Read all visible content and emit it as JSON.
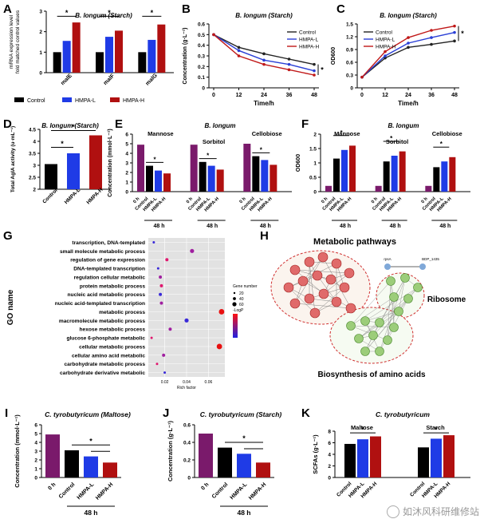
{
  "colors": {
    "control": "#000000",
    "l": "#1f3be6",
    "h": "#b01010",
    "zero": "#7a1a6b",
    "lineC": "#222222",
    "lineL": "#2a3fd6",
    "lineH": "#c01818",
    "gray": "#e2e2e2",
    "ovalRed": "#d03030",
    "ovalGreen": "#62b049"
  },
  "chart_data": [
    {
      "panel": "A",
      "type": "bar",
      "title": "B. longum (Starch)",
      "ylabel": "mRNA expression level\nfold matched control values",
      "ylim": [
        0,
        3
      ],
      "yticks": [
        0,
        1,
        2,
        3
      ],
      "categories": [
        "malE",
        "malF",
        "malG"
      ],
      "series": [
        {
          "name": "Control",
          "values": [
            1.0,
            1.0,
            1.0
          ]
        },
        {
          "name": "HMPA-L",
          "values": [
            1.55,
            1.75,
            1.6
          ]
        },
        {
          "name": "HMPA-H",
          "values": [
            2.45,
            2.05,
            2.35
          ]
        }
      ],
      "legend": [
        "Control",
        "HMPA-L",
        "HMPA-H"
      ],
      "sig": "*"
    },
    {
      "panel": "B",
      "type": "line",
      "title": "B. longum (Starch)",
      "xlabel": "Time/h",
      "ylabel": "Concentration (g·L⁻¹)",
      "x": [
        0,
        12,
        24,
        36,
        48
      ],
      "ylim": [
        0,
        0.6
      ],
      "yticks": [
        0.0,
        0.1,
        0.2,
        0.3,
        0.4,
        0.5,
        0.6
      ],
      "series": [
        {
          "name": "Control",
          "values": [
            0.5,
            0.38,
            0.32,
            0.27,
            0.22
          ]
        },
        {
          "name": "HMPA-L",
          "values": [
            0.5,
            0.35,
            0.26,
            0.22,
            0.16
          ]
        },
        {
          "name": "HMPA-H",
          "values": [
            0.5,
            0.3,
            0.22,
            0.17,
            0.12
          ]
        }
      ],
      "sig": "*"
    },
    {
      "panel": "C",
      "type": "line",
      "title": "B. longum (Starch)",
      "xlabel": "Time/h",
      "ylabel": "OD600",
      "x": [
        0,
        12,
        24,
        36,
        48
      ],
      "ylim": [
        0,
        1.5
      ],
      "yticks": [
        0.0,
        0.3,
        0.6,
        0.9,
        1.2,
        1.5
      ],
      "series": [
        {
          "name": "Control",
          "values": [
            0.25,
            0.7,
            0.95,
            1.02,
            1.1
          ]
        },
        {
          "name": "HMPA-L",
          "values": [
            0.25,
            0.75,
            1.05,
            1.18,
            1.3
          ]
        },
        {
          "name": "HMPA-H",
          "values": [
            0.25,
            0.85,
            1.18,
            1.35,
            1.45
          ]
        }
      ],
      "sig": "*"
    },
    {
      "panel": "D",
      "type": "bar",
      "title": "B. longum (Starch)",
      "ylabel": "Total AgIA activity (u·mL⁻¹)",
      "ylim": [
        2.0,
        4.5
      ],
      "yticks": [
        2.0,
        2.5,
        3.0,
        3.5,
        4.0,
        4.5
      ],
      "categories": [
        "Control",
        "HMPA-L",
        "HMPA-H"
      ],
      "values": [
        3.05,
        3.5,
        4.25
      ],
      "sig": "*"
    },
    {
      "panel": "E",
      "type": "bar",
      "title": "B. longum",
      "ylabel": "Concentration (mmol·L⁻¹)",
      "ylim": [
        0,
        6
      ],
      "yticks": [
        0,
        1,
        2,
        3,
        4,
        5,
        6
      ],
      "groups": [
        {
          "name": "Mannose",
          "values": [
            4.9,
            2.7,
            2.2,
            1.9
          ]
        },
        {
          "name": "Sorbitol",
          "values": [
            4.9,
            3.1,
            2.7,
            2.3
          ]
        },
        {
          "name": "Cellobiose",
          "values": [
            5.0,
            3.7,
            3.3,
            2.8
          ]
        }
      ],
      "categories": [
        "0 h",
        "Control",
        "HMPA-L",
        "HMPA-H"
      ],
      "xlabel": "48 h",
      "sig": "*"
    },
    {
      "panel": "F",
      "type": "bar",
      "title": "B. longum",
      "ylabel": "OD600",
      "ylim": [
        0,
        2.0
      ],
      "yticks": [
        0.0,
        0.5,
        1.0,
        1.5,
        2.0
      ],
      "groups": [
        {
          "name": "Mannose",
          "values": [
            0.2,
            1.15,
            1.45,
            1.6
          ]
        },
        {
          "name": "Sorbitol",
          "values": [
            0.2,
            1.05,
            1.25,
            1.4
          ]
        },
        {
          "name": "Cellobiose",
          "values": [
            0.2,
            0.85,
            1.05,
            1.2
          ]
        }
      ],
      "categories": [
        "0 h",
        "Control",
        "HMPA-L",
        "HMPA-H"
      ],
      "xlabel": "48 h",
      "sig": "*"
    },
    {
      "panel": "G",
      "type": "scatter",
      "ylabel": "GO name",
      "xlabel": "Rich factor",
      "xticks": [
        0.02,
        0.04,
        0.06
      ],
      "xlim": [
        0.005,
        0.075
      ],
      "terms": [
        "transcription, DNA-templated",
        "small molecule metabolic process",
        "regulation of gene expression",
        "DNA-templated transcription",
        "regulation cellular metabolic",
        "protein metabolic process",
        "nucleic acid metabolic process",
        "nucleic acid-templated transcription",
        "metabolic process",
        "macromolecule metabolic process",
        "hexose metabolic process",
        "glucose 6-phosphate metabolic",
        "cellular metabolic process",
        "cellular amino acid metabolic",
        "carbohydrate metabolic process",
        "carbohydrate derivative metabolic"
      ],
      "rich": [
        0.01,
        0.045,
        0.022,
        0.014,
        0.016,
        0.017,
        0.016,
        0.017,
        0.072,
        0.04,
        0.025,
        0.008,
        0.07,
        0.019,
        0.013,
        0.02
      ],
      "size": [
        1,
        3,
        2,
        1,
        2,
        2,
        2,
        2,
        4,
        3,
        2,
        1,
        4,
        2,
        1,
        1
      ],
      "legend": {
        "size_title": "Gene number",
        "sizes": [
          "20",
          "40",
          "60"
        ],
        "color_title": "-LogP"
      }
    },
    {
      "panel": "I",
      "type": "bar",
      "title": "C. tyrobutyricum (Maltose)",
      "ylabel": "Concentration (mmol·L⁻¹)",
      "ylim": [
        0,
        6
      ],
      "yticks": [
        0,
        1,
        2,
        3,
        4,
        5,
        6
      ],
      "categories": [
        "0 h",
        "Control",
        "HMPA-L",
        "HMPA-H"
      ],
      "values": [
        4.9,
        3.1,
        2.4,
        1.7
      ],
      "xlabel": "48 h",
      "sig": "*"
    },
    {
      "panel": "J",
      "type": "bar",
      "title": "C. tyrobutyricum (Starch)",
      "ylabel": "Concentration (g·L⁻¹)",
      "ylim": [
        0,
        0.6
      ],
      "yticks": [
        0.0,
        0.2,
        0.4,
        0.6
      ],
      "categories": [
        "0 h",
        "Control",
        "HMPA-L",
        "HMPA-H"
      ],
      "values": [
        0.5,
        0.34,
        0.27,
        0.17
      ],
      "xlabel": "48 h",
      "sig": "*"
    },
    {
      "panel": "K",
      "type": "bar",
      "title": "C. tyrobutyricum",
      "ylabel": "SCFAs (g·L⁻¹)",
      "ylim": [
        0,
        8
      ],
      "yticks": [
        0,
        2,
        4,
        6,
        8
      ],
      "groups": [
        {
          "name": "Maltose",
          "values": [
            5.8,
            6.6,
            7.1
          ]
        },
        {
          "name": "Starch",
          "values": [
            5.2,
            6.7,
            7.3
          ]
        }
      ],
      "categories": [
        "Control",
        "HMPA-L",
        "HMPA-H"
      ],
      "sig": "*"
    }
  ],
  "panel_h": {
    "label": "H",
    "labels": {
      "metabolic": "Metabolic pathways",
      "ribosome": "Ribosome",
      "amino": "Biosynthesis of amino acids"
    },
    "small_nodes": [
      "rpsA",
      "BDP_1435"
    ]
  },
  "watermark": "如沐风科研维修站"
}
